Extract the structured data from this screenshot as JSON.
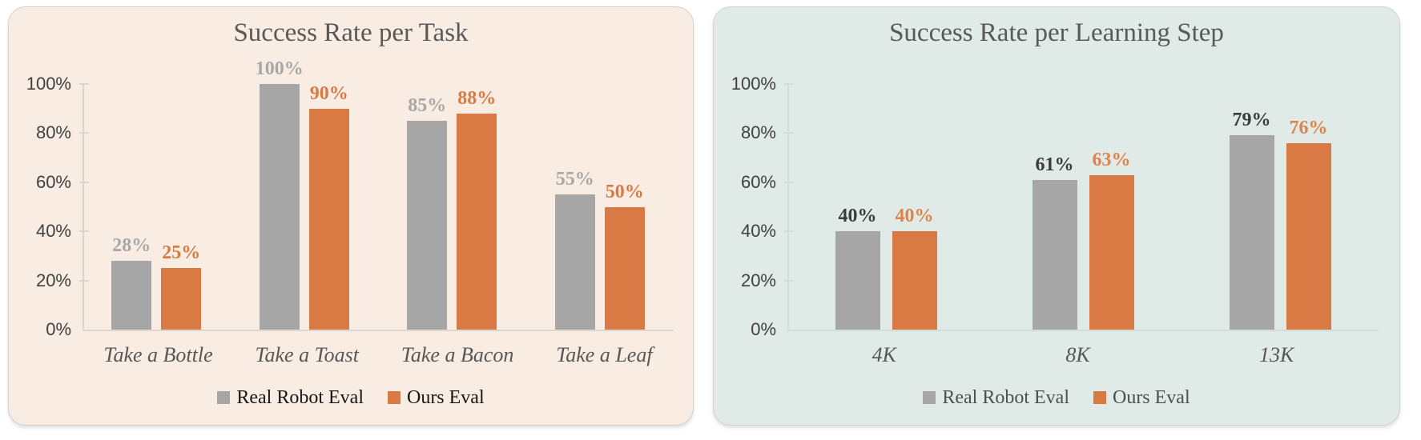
{
  "page": {
    "background": "#ffffff"
  },
  "chart_data": [
    {
      "type": "bar",
      "title": "Success Rate per Task",
      "categories": [
        "Take a Bottle",
        "Take a Toast",
        "Take a Bacon",
        "Take a Leaf"
      ],
      "series": [
        {
          "name": "Real Robot Eval",
          "values": [
            28,
            100,
            85,
            55
          ]
        },
        {
          "name": "Ours Eval",
          "values": [
            25,
            90,
            88,
            50
          ]
        }
      ],
      "value_labels": [
        [
          "28%",
          "100%",
          "85%",
          "55%"
        ],
        [
          "25%",
          "90%",
          "88%",
          "50%"
        ]
      ],
      "y_ticks": [
        "100%",
        "80%",
        "60%",
        "40%",
        "20%",
        "0%"
      ],
      "ylim": [
        0,
        100
      ],
      "grid": false,
      "legend_position": "bottom",
      "legend": [
        "Real Robot Eval",
        "Ours Eval"
      ],
      "colors": {
        "background": "#f9ece3",
        "series": [
          "#a6a6a6",
          "#d97a44"
        ],
        "value_labels": [
          "#a8a8a8",
          "#d97a44"
        ],
        "title": "#595959",
        "axis": "#dcd6d0",
        "tick_label": "#3f3f3f",
        "category_label": "#575757",
        "legend_text": "#161616"
      }
    },
    {
      "type": "bar",
      "title": "Success Rate per Learning Step",
      "categories": [
        "4K",
        "8K",
        "13K"
      ],
      "series": [
        {
          "name": "Real Robot Eval",
          "values": [
            40,
            61,
            79
          ]
        },
        {
          "name": "Ours Eval",
          "values": [
            40,
            63,
            76
          ]
        }
      ],
      "value_labels": [
        [
          "40%",
          "61%",
          "79%"
        ],
        [
          "40%",
          "63%",
          "76%"
        ]
      ],
      "y_ticks": [
        "100%",
        "80%",
        "60%",
        "40%",
        "20%",
        "0%"
      ],
      "ylim": [
        0,
        100
      ],
      "grid": false,
      "legend_position": "bottom",
      "legend": [
        "Real Robot Eval",
        "Ours Eval"
      ],
      "colors": {
        "background": "#e0eae7",
        "series": [
          "#a6a6a6",
          "#d97a44"
        ],
        "value_labels": [
          "#3c3c3c",
          "#df8349"
        ],
        "title": "#595959",
        "axis": "#d2dcd8",
        "tick_label": "#3f3f3f",
        "category_label": "#575757",
        "legend_text": "#4f4f4f"
      }
    }
  ]
}
